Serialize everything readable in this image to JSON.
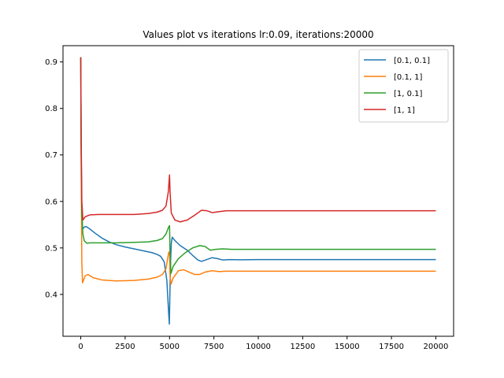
{
  "chart_data": {
    "type": "line",
    "title": "Values plot vs iterations lr:0.09, iterations:20000",
    "xlabel": "",
    "ylabel": "",
    "xlim": [
      -1000,
      21000
    ],
    "ylim": [
      0.31,
      0.935
    ],
    "xticks": [
      0,
      2500,
      5000,
      7500,
      10000,
      12500,
      15000,
      17500,
      20000
    ],
    "xtick_labels": [
      "0",
      "2500",
      "5000",
      "7500",
      "10000",
      "12500",
      "15000",
      "17500",
      "20000"
    ],
    "yticks": [
      0.4,
      0.5,
      0.6,
      0.7,
      0.8,
      0.9
    ],
    "ytick_labels": [
      "0.4",
      "0.5",
      "0.6",
      "0.7",
      "0.8",
      "0.9"
    ],
    "grid": false,
    "legend_position": "top-right",
    "series": [
      {
        "name": "[0.1, 0.1]",
        "color": "#1f77b4",
        "points": [
          [
            0,
            0.91
          ],
          [
            20,
            0.75
          ],
          [
            50,
            0.6
          ],
          [
            100,
            0.54
          ],
          [
            200,
            0.545
          ],
          [
            300,
            0.546
          ],
          [
            500,
            0.541
          ],
          [
            800,
            0.532
          ],
          [
            1200,
            0.521
          ],
          [
            1600,
            0.513
          ],
          [
            2000,
            0.507
          ],
          [
            2500,
            0.502
          ],
          [
            3000,
            0.498
          ],
          [
            3500,
            0.494
          ],
          [
            4000,
            0.49
          ],
          [
            4300,
            0.486
          ],
          [
            4500,
            0.482
          ],
          [
            4700,
            0.47
          ],
          [
            4850,
            0.43
          ],
          [
            4950,
            0.36
          ],
          [
            4990,
            0.336
          ],
          [
            5020,
            0.4
          ],
          [
            5060,
            0.47
          ],
          [
            5100,
            0.51
          ],
          [
            5150,
            0.523
          ],
          [
            5300,
            0.516
          ],
          [
            5600,
            0.505
          ],
          [
            6000,
            0.495
          ],
          [
            6300,
            0.484
          ],
          [
            6600,
            0.474
          ],
          [
            6800,
            0.471
          ],
          [
            7100,
            0.475
          ],
          [
            7400,
            0.479
          ],
          [
            7700,
            0.477
          ],
          [
            8000,
            0.474
          ],
          [
            8400,
            0.475
          ],
          [
            9000,
            0.4745
          ],
          [
            10000,
            0.475
          ],
          [
            12500,
            0.475
          ],
          [
            15000,
            0.475
          ],
          [
            17500,
            0.475
          ],
          [
            20000,
            0.475
          ]
        ]
      },
      {
        "name": "[0.1, 1]",
        "color": "#ff7f0e",
        "points": [
          [
            0,
            0.91
          ],
          [
            20,
            0.7
          ],
          [
            60,
            0.47
          ],
          [
            100,
            0.425
          ],
          [
            150,
            0.43
          ],
          [
            250,
            0.44
          ],
          [
            400,
            0.443
          ],
          [
            700,
            0.436
          ],
          [
            1200,
            0.431
          ],
          [
            2000,
            0.429
          ],
          [
            3000,
            0.43
          ],
          [
            3800,
            0.433
          ],
          [
            4300,
            0.437
          ],
          [
            4600,
            0.443
          ],
          [
            4800,
            0.455
          ],
          [
            4950,
            0.49
          ],
          [
            5000,
            0.492
          ],
          [
            5030,
            0.44
          ],
          [
            5080,
            0.422
          ],
          [
            5200,
            0.435
          ],
          [
            5500,
            0.451
          ],
          [
            5800,
            0.453
          ],
          [
            6100,
            0.448
          ],
          [
            6400,
            0.443
          ],
          [
            6700,
            0.443
          ],
          [
            7000,
            0.448
          ],
          [
            7400,
            0.451
          ],
          [
            7800,
            0.449
          ],
          [
            8200,
            0.45
          ],
          [
            9000,
            0.45
          ],
          [
            10000,
            0.45
          ],
          [
            12500,
            0.45
          ],
          [
            15000,
            0.45
          ],
          [
            17500,
            0.45
          ],
          [
            20000,
            0.45
          ]
        ]
      },
      {
        "name": "[1, 0.1]",
        "color": "#2ca02c",
        "points": [
          [
            0,
            0.91
          ],
          [
            20,
            0.72
          ],
          [
            60,
            0.57
          ],
          [
            120,
            0.53
          ],
          [
            200,
            0.515
          ],
          [
            350,
            0.51
          ],
          [
            500,
            0.511
          ],
          [
            1000,
            0.511
          ],
          [
            2000,
            0.511
          ],
          [
            3000,
            0.512
          ],
          [
            3800,
            0.513
          ],
          [
            4300,
            0.516
          ],
          [
            4600,
            0.52
          ],
          [
            4800,
            0.53
          ],
          [
            4950,
            0.545
          ],
          [
            5000,
            0.548
          ],
          [
            5030,
            0.49
          ],
          [
            5080,
            0.445
          ],
          [
            5200,
            0.46
          ],
          [
            5500,
            0.477
          ],
          [
            5900,
            0.49
          ],
          [
            6300,
            0.5
          ],
          [
            6700,
            0.505
          ],
          [
            7000,
            0.503
          ],
          [
            7300,
            0.495
          ],
          [
            7600,
            0.497
          ],
          [
            8000,
            0.498
          ],
          [
            8500,
            0.497
          ],
          [
            9000,
            0.497
          ],
          [
            10000,
            0.497
          ],
          [
            12500,
            0.497
          ],
          [
            15000,
            0.497
          ],
          [
            17500,
            0.497
          ],
          [
            20000,
            0.497
          ]
        ]
      },
      {
        "name": "[1, 1]",
        "color": "#d62728",
        "points": [
          [
            0,
            0.91
          ],
          [
            20,
            0.75
          ],
          [
            60,
            0.6
          ],
          [
            120,
            0.56
          ],
          [
            250,
            0.567
          ],
          [
            500,
            0.571
          ],
          [
            1000,
            0.572
          ],
          [
            2000,
            0.572
          ],
          [
            3000,
            0.572
          ],
          [
            3800,
            0.574
          ],
          [
            4300,
            0.577
          ],
          [
            4600,
            0.581
          ],
          [
            4800,
            0.59
          ],
          [
            4930,
            0.62
          ],
          [
            5000,
            0.657
          ],
          [
            5030,
            0.62
          ],
          [
            5100,
            0.575
          ],
          [
            5300,
            0.56
          ],
          [
            5600,
            0.556
          ],
          [
            6000,
            0.56
          ],
          [
            6400,
            0.57
          ],
          [
            6800,
            0.581
          ],
          [
            7100,
            0.58
          ],
          [
            7400,
            0.576
          ],
          [
            7800,
            0.578
          ],
          [
            8200,
            0.58
          ],
          [
            9000,
            0.58
          ],
          [
            10000,
            0.58
          ],
          [
            12500,
            0.58
          ],
          [
            15000,
            0.58
          ],
          [
            17500,
            0.58
          ],
          [
            20000,
            0.58
          ]
        ]
      }
    ]
  }
}
